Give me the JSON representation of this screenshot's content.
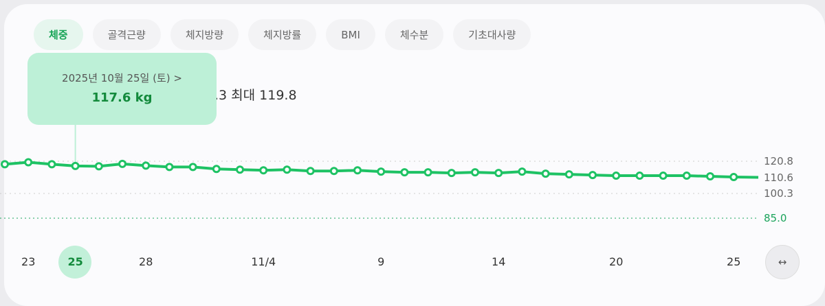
{
  "tabs": [
    {
      "label": "체중",
      "active": true
    },
    {
      "label": "골격근량"
    },
    {
      "label": "체지방량"
    },
    {
      "label": "체지방률"
    },
    {
      "label": "BMI"
    },
    {
      "label": "체수분"
    },
    {
      "label": "기초대사량"
    }
  ],
  "summary": ".3 최대 119.8",
  "tooltip": {
    "date": "2025년 10월 25일 (토)  >",
    "value": "117.6 kg"
  },
  "chart_data": {
    "type": "line",
    "unit": "kg",
    "values": [
      118.6,
      119.8,
      118.6,
      117.6,
      117.4,
      118.8,
      117.8,
      117.0,
      117.0,
      115.8,
      115.4,
      115.0,
      115.4,
      114.6,
      114.6,
      115.0,
      114.2,
      113.8,
      113.8,
      113.4,
      113.8,
      113.4,
      114.2,
      113.0,
      112.6,
      112.2,
      111.8,
      111.8,
      111.8,
      111.8,
      111.4,
      111.0
    ],
    "x_ticks": [
      {
        "index": 1,
        "label": "23"
      },
      {
        "index": 3,
        "label": "25",
        "selected": true
      },
      {
        "index": 6,
        "label": "28"
      },
      {
        "index": 11,
        "label": "11/4"
      },
      {
        "index": 16,
        "label": "9"
      },
      {
        "index": 21,
        "label": "14"
      },
      {
        "index": 26,
        "label": "20"
      },
      {
        "index": 31,
        "label": "25"
      }
    ],
    "y_ticks": [
      "120.8",
      "110.6",
      "100.3"
    ],
    "goal": "85.0",
    "line_color": "#1ec264",
    "goal_color": "#1aa35a"
  },
  "expand_icon": "↔"
}
